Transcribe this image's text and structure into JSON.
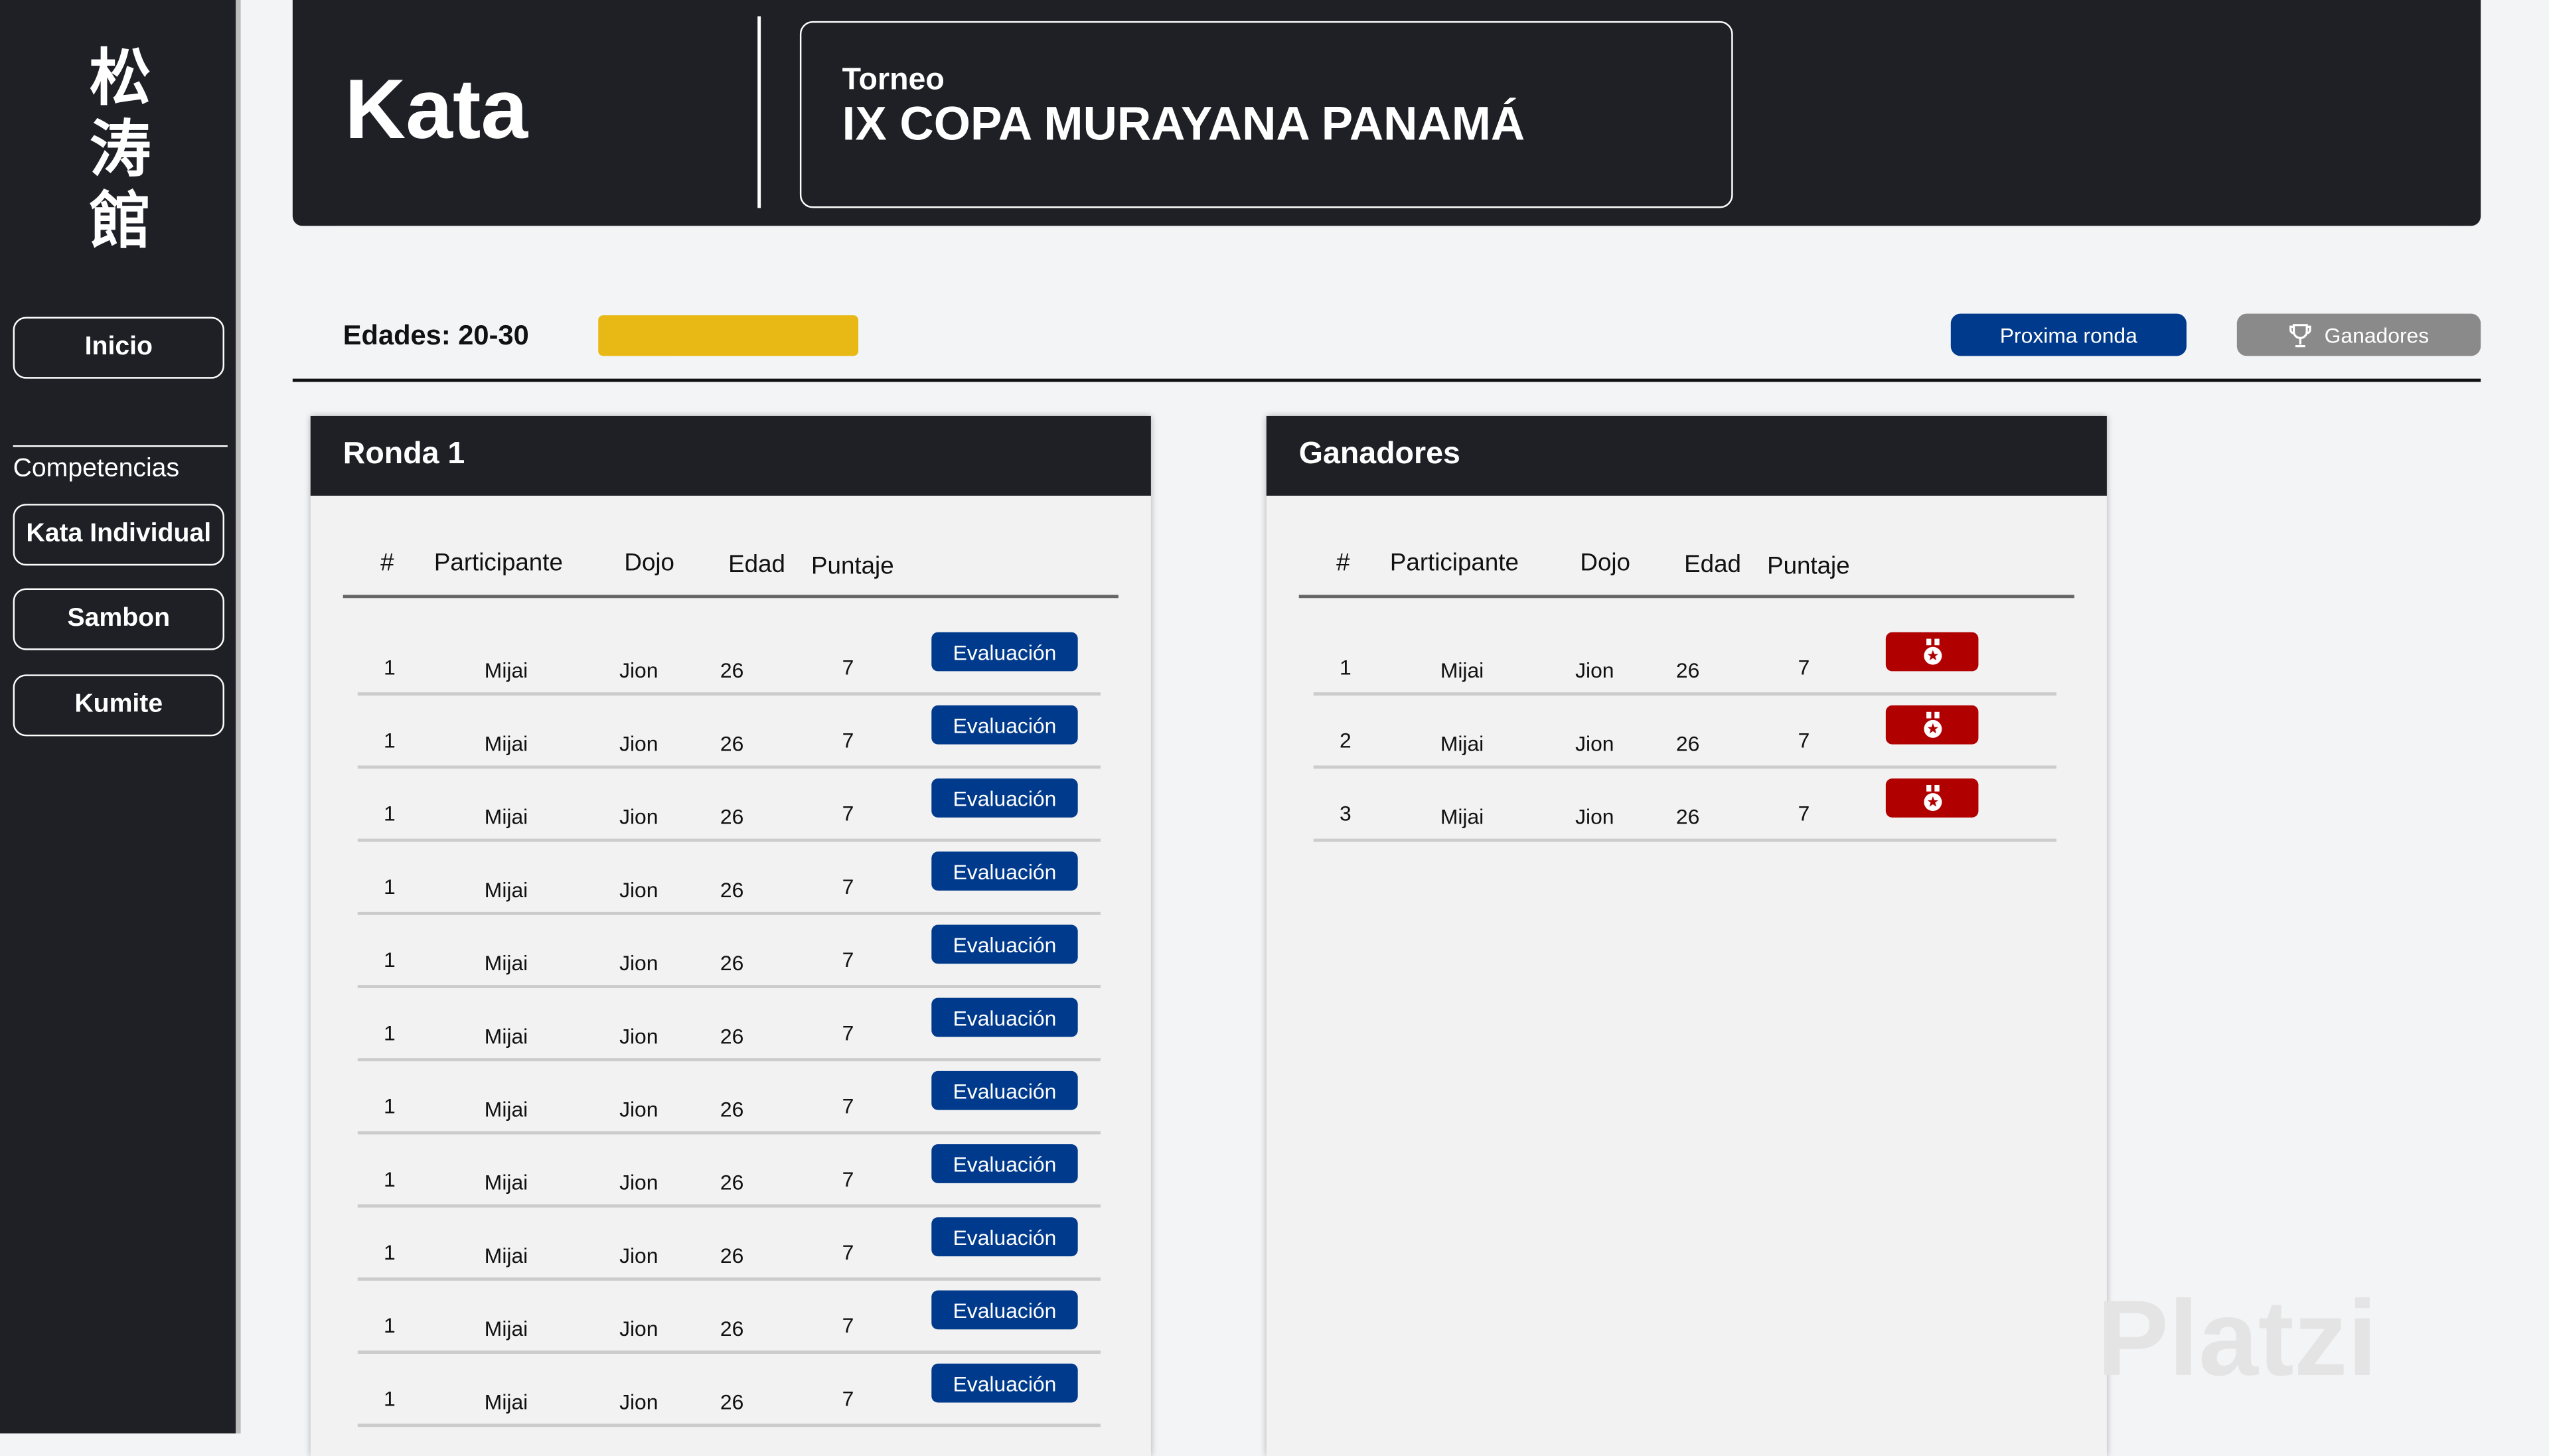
{
  "colors": {
    "sidebar": "#1f2026",
    "primary": "#003a8c",
    "secondary": "#8a8a8a",
    "accent_yellow": "#e8b914",
    "medal": "#b00000"
  },
  "sidebar": {
    "logo": [
      "松",
      "涛",
      "館"
    ],
    "home": "Inicio",
    "section": "Competencias",
    "items": [
      {
        "label": "Kata Individual"
      },
      {
        "label": "Sambon"
      },
      {
        "label": "Kumite"
      }
    ]
  },
  "header": {
    "title": "Kata",
    "tournament_label": "Torneo",
    "tournament_name": "IX COPA MURAYANA PANAMÁ"
  },
  "toolbar": {
    "ages": "Edades: 20-30",
    "next_round": "Proxima ronda",
    "winners": "Ganadores",
    "winners_icon": "trophy-icon"
  },
  "round": {
    "title": "Ronda 1",
    "columns": [
      "#",
      "Participante",
      "Dojo",
      "Edad",
      "Puntaje"
    ],
    "action_label": "Evaluación",
    "rows": [
      {
        "n": "1",
        "name": "Mijai",
        "dojo": "Jion",
        "age": "26",
        "score": "7"
      },
      {
        "n": "1",
        "name": "Mijai",
        "dojo": "Jion",
        "age": "26",
        "score": "7"
      },
      {
        "n": "1",
        "name": "Mijai",
        "dojo": "Jion",
        "age": "26",
        "score": "7"
      },
      {
        "n": "1",
        "name": "Mijai",
        "dojo": "Jion",
        "age": "26",
        "score": "7"
      },
      {
        "n": "1",
        "name": "Mijai",
        "dojo": "Jion",
        "age": "26",
        "score": "7"
      },
      {
        "n": "1",
        "name": "Mijai",
        "dojo": "Jion",
        "age": "26",
        "score": "7"
      },
      {
        "n": "1",
        "name": "Mijai",
        "dojo": "Jion",
        "age": "26",
        "score": "7"
      },
      {
        "n": "1",
        "name": "Mijai",
        "dojo": "Jion",
        "age": "26",
        "score": "7"
      },
      {
        "n": "1",
        "name": "Mijai",
        "dojo": "Jion",
        "age": "26",
        "score": "7"
      },
      {
        "n": "1",
        "name": "Mijai",
        "dojo": "Jion",
        "age": "26",
        "score": "7"
      },
      {
        "n": "1",
        "name": "Mijai",
        "dojo": "Jion",
        "age": "26",
        "score": "7"
      }
    ]
  },
  "winners": {
    "title": "Ganadores",
    "columns": [
      "#",
      "Participante",
      "Dojo",
      "Edad",
      "Puntaje"
    ],
    "action_icon": "medal-icon",
    "rows": [
      {
        "n": "1",
        "name": "Mijai",
        "dojo": "Jion",
        "age": "26",
        "score": "7"
      },
      {
        "n": "2",
        "name": "Mijai",
        "dojo": "Jion",
        "age": "26",
        "score": "7"
      },
      {
        "n": "3",
        "name": "Mijai",
        "dojo": "Jion",
        "age": "26",
        "score": "7"
      }
    ]
  },
  "watermark": "Platzi"
}
